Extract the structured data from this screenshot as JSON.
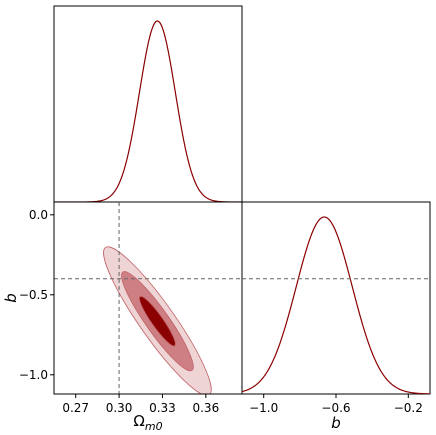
{
  "chart_data": {
    "type": "corner",
    "parameters": [
      {
        "symbol": "Ω",
        "subscript": "m0",
        "range": [
          0.255,
          0.385
        ],
        "ticks": [
          0.27,
          0.3,
          0.33,
          0.36
        ],
        "tick_labels": [
          "0.27",
          "0.30",
          "0.33",
          "0.36"
        ]
      },
      {
        "symbol": "b",
        "range": [
          -1.12,
          0.08
        ],
        "ticks": [
          0.0,
          -0.5,
          -1.0
        ],
        "tick_labels": [
          "0.0",
          "−0.5",
          "−1.0"
        ]
      }
    ],
    "b_marginal_axis": {
      "range": [
        -1.12,
        -0.08
      ],
      "ticks": [
        -1.0,
        -0.6,
        -0.2
      ],
      "tick_labels": [
        "−1.0",
        "−0.6",
        "−0.2"
      ]
    },
    "marginals": [
      {
        "param": "Ω_m0",
        "mean": 0.3265,
        "sigma": 0.0124
      },
      {
        "param": "b",
        "mean": -0.665,
        "sigma": 0.155
      }
    ],
    "joint": {
      "mean": [
        0.3265,
        -0.665
      ],
      "sigma": [
        0.0124,
        0.155
      ],
      "correlation": -0.92,
      "contour_levels_sigma": [
        1,
        2,
        3
      ]
    },
    "reference_lines": {
      "Ω_m0": 0.3,
      "b": -0.4
    },
    "colors": {
      "line": "#8b0000",
      "contour_1sigma": "#8b0000",
      "contour_2sigma": "#cd7f84",
      "contour_3sigma": "#efd4d6",
      "edge": "#c06064",
      "reference": "#666666"
    }
  }
}
